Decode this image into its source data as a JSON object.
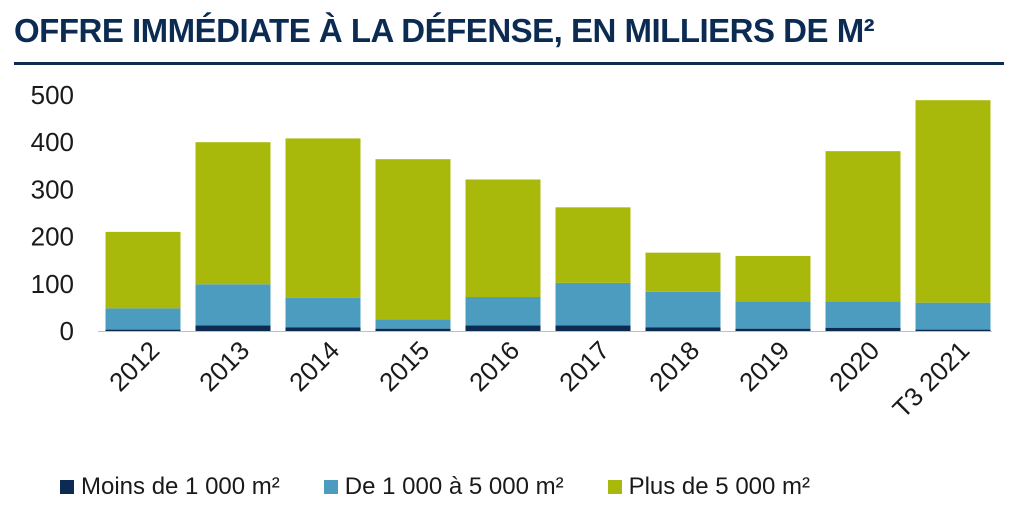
{
  "title": "OFFRE IMMÉDIATE À LA DÉFENSE, EN MILLIERS DE M²",
  "chart_data": {
    "type": "bar",
    "stacked": true,
    "categories": [
      "2012",
      "2013",
      "2014",
      "2015",
      "2016",
      "2017",
      "2018",
      "2019",
      "2020",
      "T3 2021"
    ],
    "series": [
      {
        "name": "Moins de 1 000 m²",
        "color": "#0c2a52",
        "values": [
          3,
          12,
          8,
          5,
          12,
          12,
          8,
          5,
          7,
          3
        ]
      },
      {
        "name": "De 1 000 à 5 000 m²",
        "color": "#4b9cbf",
        "values": [
          45,
          87,
          62,
          20,
          60,
          90,
          75,
          58,
          56,
          57
        ]
      },
      {
        "name": "Plus de 5 000 m²",
        "color": "#a8b90c",
        "values": [
          162,
          301,
          338,
          339,
          249,
          160,
          83,
          96,
          318,
          429
        ]
      }
    ],
    "xlabel": "",
    "ylabel": "",
    "ylim": [
      0,
      500
    ],
    "yticks": [
      0,
      100,
      200,
      300,
      400,
      500
    ],
    "grid": false,
    "legend_position": "bottom"
  }
}
